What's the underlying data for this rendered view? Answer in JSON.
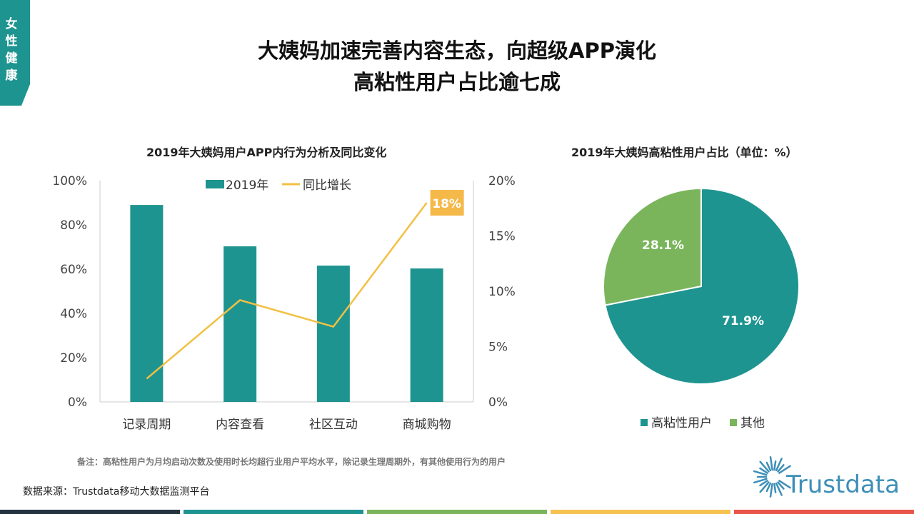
{
  "tag": "女性健康",
  "title": [
    "大姨妈加速完善内容生态，向超级APP演化",
    "高粘性用户占比逾七成"
  ],
  "chart_data": [
    {
      "type": "bar",
      "title": "2019年大姨妈用户APP内行为分析及同比变化",
      "categories": [
        "记录周期",
        "内容查看",
        "社区互动",
        "商城购物"
      ],
      "series": [
        {
          "name": "2019年",
          "type": "bar",
          "axis": "left",
          "values": [
            89,
            70.3,
            61.6,
            60.3
          ],
          "color": "#1e9490"
        },
        {
          "name": "同比增长",
          "type": "line",
          "axis": "right",
          "values": [
            2.1,
            9.2,
            6.8,
            18
          ],
          "color": "#f2c043"
        }
      ],
      "left_axis": {
        "ylim": [
          0,
          100
        ],
        "ticks": [
          "0%",
          "20%",
          "40%",
          "60%",
          "80%",
          "100%"
        ]
      },
      "right_axis": {
        "ylim": [
          0,
          20
        ],
        "ticks": [
          "0%",
          "5%",
          "10%",
          "15%",
          "20%"
        ]
      },
      "annotation": "18%",
      "annotation_color": "#f5b94a",
      "legend": "top-center",
      "grid": false
    },
    {
      "type": "pie",
      "title": "2019年大姨妈高粘性用户占比（单位：%）",
      "slices": [
        {
          "name": "高粘性用户",
          "value": 71.9,
          "label": "71.9%",
          "color": "#1e9490"
        },
        {
          "name": "其他",
          "value": 28.1,
          "label": "28.1%",
          "color": "#7ab55c"
        }
      ],
      "legend": "bottom"
    }
  ],
  "note": "备注：高粘性用户为月均启动次数及使用时长均超行业用户平均水平，除记录生理周期外，有其他使用行为的用户",
  "source": "数据来源：Trustdata移动大数据监测平台",
  "logo": "Trustdata",
  "stripe_colors": [
    "#243340",
    "#1e9490",
    "#7ab55c",
    "#f5c150",
    "#e8534a"
  ]
}
